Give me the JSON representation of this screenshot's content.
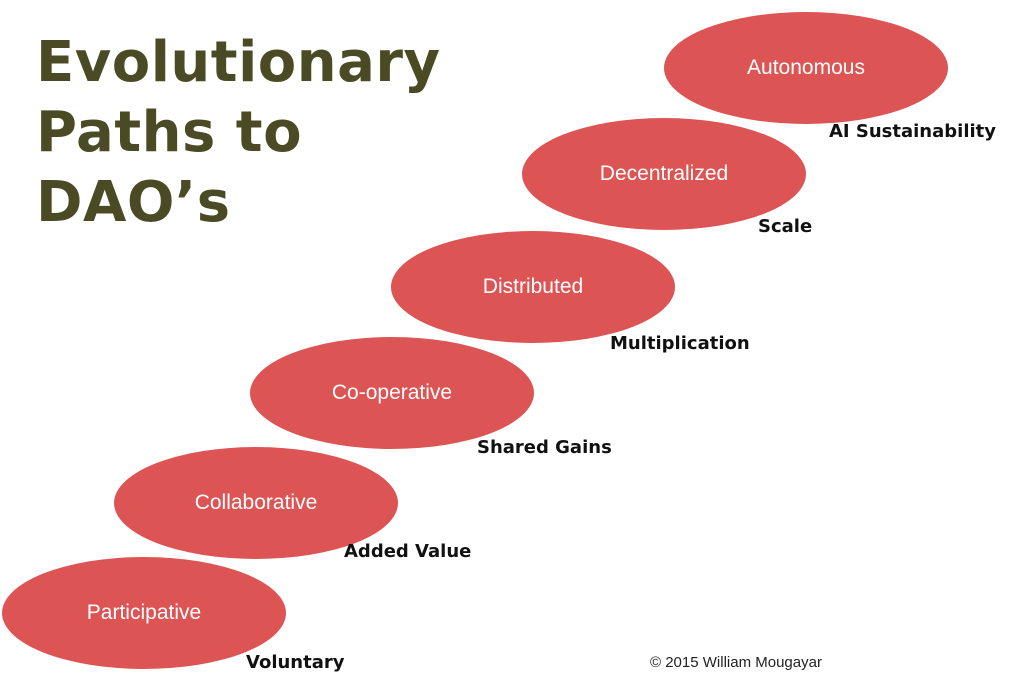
{
  "title_lines": [
    "Evolutionary",
    "Paths to",
    "DAO’s"
  ],
  "stages": [
    {
      "label": "Participative",
      "outcome": "Voluntary"
    },
    {
      "label": "Collaborative",
      "outcome": "Added Value"
    },
    {
      "label": "Co-operative",
      "outcome": "Shared Gains"
    },
    {
      "label": "Distributed",
      "outcome": "Multiplication"
    },
    {
      "label": "Decentralized",
      "outcome": "Scale"
    },
    {
      "label": "Autonomous",
      "outcome": "AI Sustainability"
    }
  ],
  "copyright": "© 2015 William Mougayar",
  "colors": {
    "title": "#4a4b25",
    "ellipse_fill": "#dd5454",
    "ellipse_text": "#ffffff",
    "outcome_text": "#111111"
  }
}
